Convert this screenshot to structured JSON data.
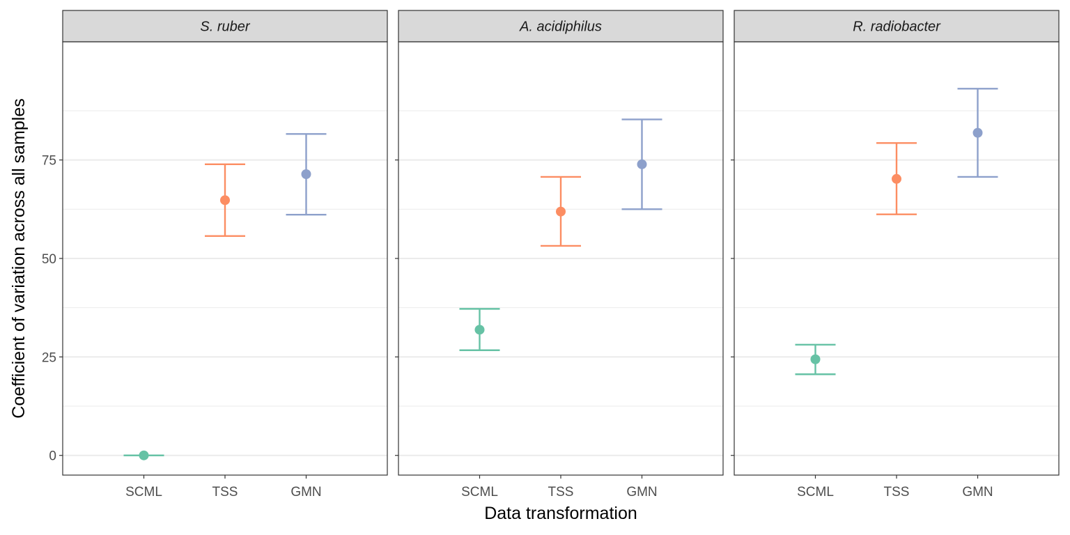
{
  "chart_data": {
    "type": "scatter",
    "subtype": "point-with-errorbars, faceted",
    "xlabel": "Data transformation",
    "ylabel": "Coefficient of variation across all samples",
    "ylim": [
      -5,
      105
    ],
    "yticks": [
      0,
      25,
      50,
      75
    ],
    "grid": true,
    "legend": "none",
    "categories": [
      "SCML",
      "TSS",
      "GMN"
    ],
    "colors": {
      "SCML": "#66c2a5",
      "TSS": "#fc8d62",
      "GMN": "#8da0cb"
    },
    "facets": [
      {
        "title": "S. ruber",
        "points": [
          {
            "x": "SCML",
            "y": 0.0,
            "ymin": 0.0,
            "ymax": 0.0
          },
          {
            "x": "TSS",
            "y": 64.8,
            "ymin": 55.7,
            "ymax": 73.9
          },
          {
            "x": "GMN",
            "y": 71.4,
            "ymin": 61.1,
            "ymax": 81.6
          }
        ]
      },
      {
        "title": "A. acidiphilus",
        "points": [
          {
            "x": "SCML",
            "y": 31.9,
            "ymin": 26.7,
            "ymax": 37.2
          },
          {
            "x": "TSS",
            "y": 61.9,
            "ymin": 53.2,
            "ymax": 70.7
          },
          {
            "x": "GMN",
            "y": 73.9,
            "ymin": 62.5,
            "ymax": 85.3
          }
        ]
      },
      {
        "title": "R. radiobacter",
        "points": [
          {
            "x": "SCML",
            "y": 24.4,
            "ymin": 20.6,
            "ymax": 28.1
          },
          {
            "x": "TSS",
            "y": 70.2,
            "ymin": 61.2,
            "ymax": 79.3
          },
          {
            "x": "GMN",
            "y": 81.9,
            "ymin": 70.7,
            "ymax": 93.1
          }
        ]
      }
    ]
  }
}
